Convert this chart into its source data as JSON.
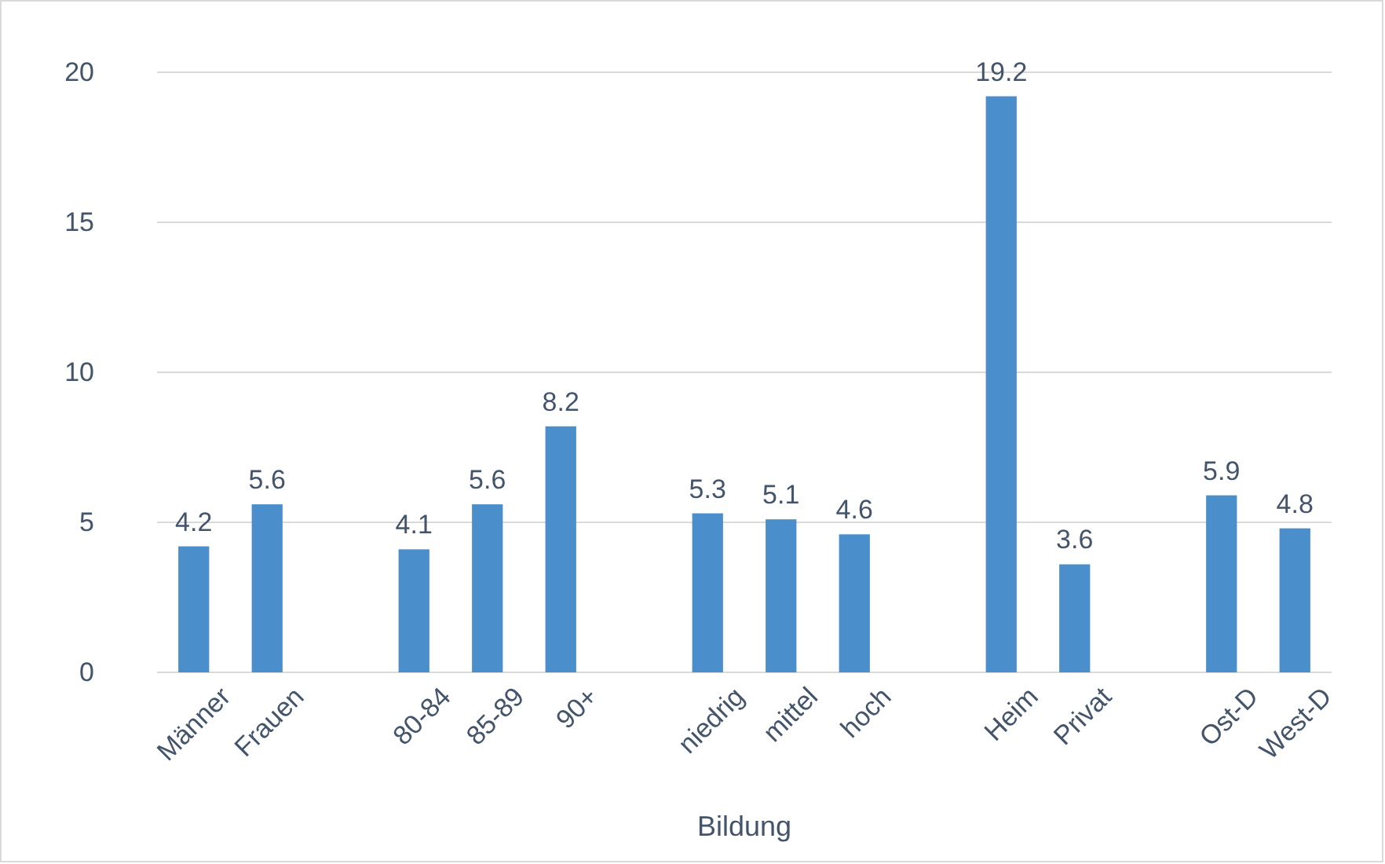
{
  "chart_data": {
    "type": "bar",
    "xlabel": "Bildung",
    "categories": [
      "Männer",
      "Frauen",
      null,
      "80-84",
      "85-89",
      "90+",
      null,
      "niedrig",
      "mittel",
      "hoch",
      null,
      "Heim",
      "Privat",
      null,
      "Ost-D",
      "West-D"
    ],
    "values": [
      4.2,
      5.6,
      null,
      4.1,
      5.6,
      8.2,
      null,
      5.3,
      5.1,
      4.6,
      null,
      19.2,
      3.6,
      null,
      5.9,
      4.8
    ],
    "color": "#4a8fcb",
    "ylim": [
      0,
      20
    ],
    "yticks": [
      0,
      5,
      10,
      15,
      20
    ],
    "grid": "y",
    "data_labels": true
  }
}
